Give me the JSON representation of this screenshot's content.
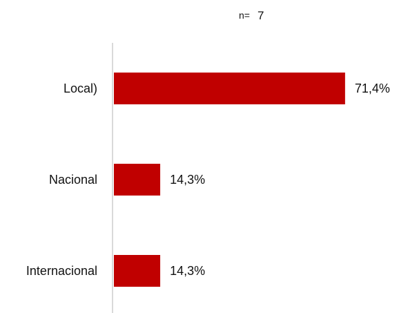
{
  "chart_data": {
    "type": "bar",
    "orientation": "horizontal",
    "categories": [
      "Local)",
      "Nacional",
      "Internacional"
    ],
    "values": [
      71.4,
      14.3,
      14.3
    ],
    "value_labels": [
      "71,4%",
      "14,3%",
      "14,3%"
    ],
    "xlim": [
      0,
      100
    ],
    "title": "",
    "n_prefix": "n=",
    "n_value": "7",
    "xlabel": "",
    "ylabel": "",
    "grid": false,
    "bar_color": "#c00000",
    "axis_color": "#d9d9d9"
  }
}
